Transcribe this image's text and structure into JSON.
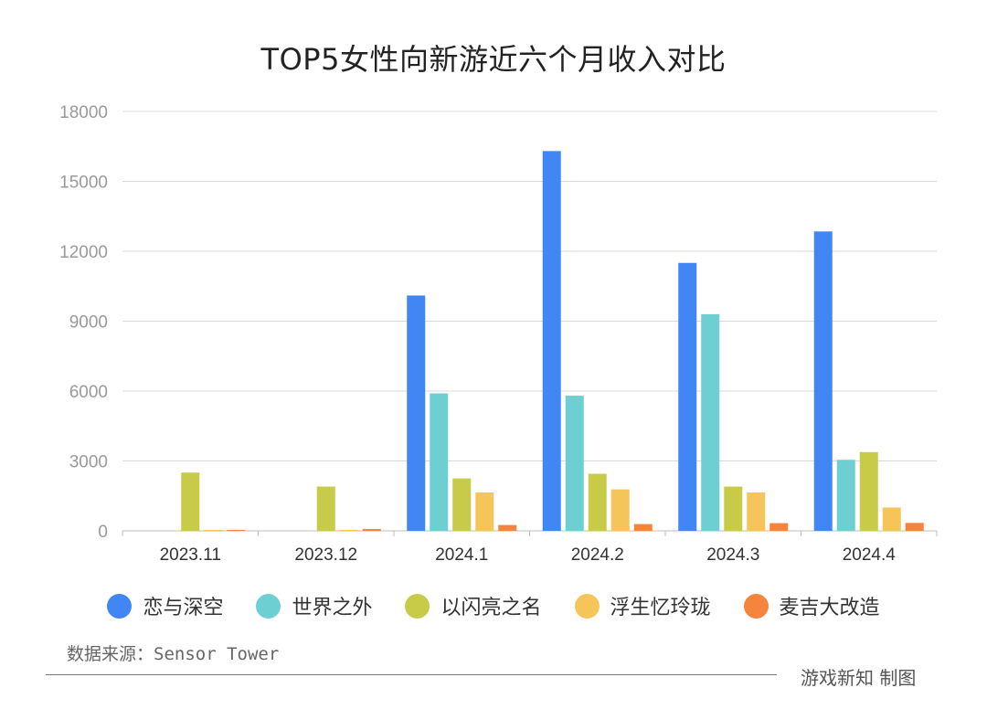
{
  "chart_data": {
    "type": "bar",
    "title": "TOP5女性向新游近六个月收入对比",
    "categories": [
      "2023.11",
      "2023.12",
      "2024.1",
      "2024.2",
      "2024.3",
      "2024.4"
    ],
    "ylim": [
      0,
      18000
    ],
    "yticks": [
      0,
      3000,
      6000,
      9000,
      12000,
      15000,
      18000
    ],
    "grid": true,
    "legend_position": "bottom",
    "series": [
      {
        "name": "恋与深空",
        "color": "#4285F4",
        "values": [
          0,
          0,
          10100,
          16300,
          11500,
          12850
        ]
      },
      {
        "name": "世界之外",
        "color": "#6DCFD2",
        "values": [
          0,
          0,
          5900,
          5800,
          9300,
          3050
        ]
      },
      {
        "name": "以闪亮之名",
        "color": "#C7CB48",
        "values": [
          2500,
          1900,
          2250,
          2450,
          1900,
          3380
        ]
      },
      {
        "name": "浮生忆玲珑",
        "color": "#F6C55A",
        "values": [
          20,
          20,
          1650,
          1780,
          1650,
          1000
        ]
      },
      {
        "name": "麦吉大改造",
        "color": "#F5843C",
        "values": [
          30,
          80,
          250,
          290,
          330,
          340
        ]
      }
    ]
  },
  "footer": {
    "source": "数据来源：Sensor Tower",
    "credit": "游戏新知  制图"
  }
}
